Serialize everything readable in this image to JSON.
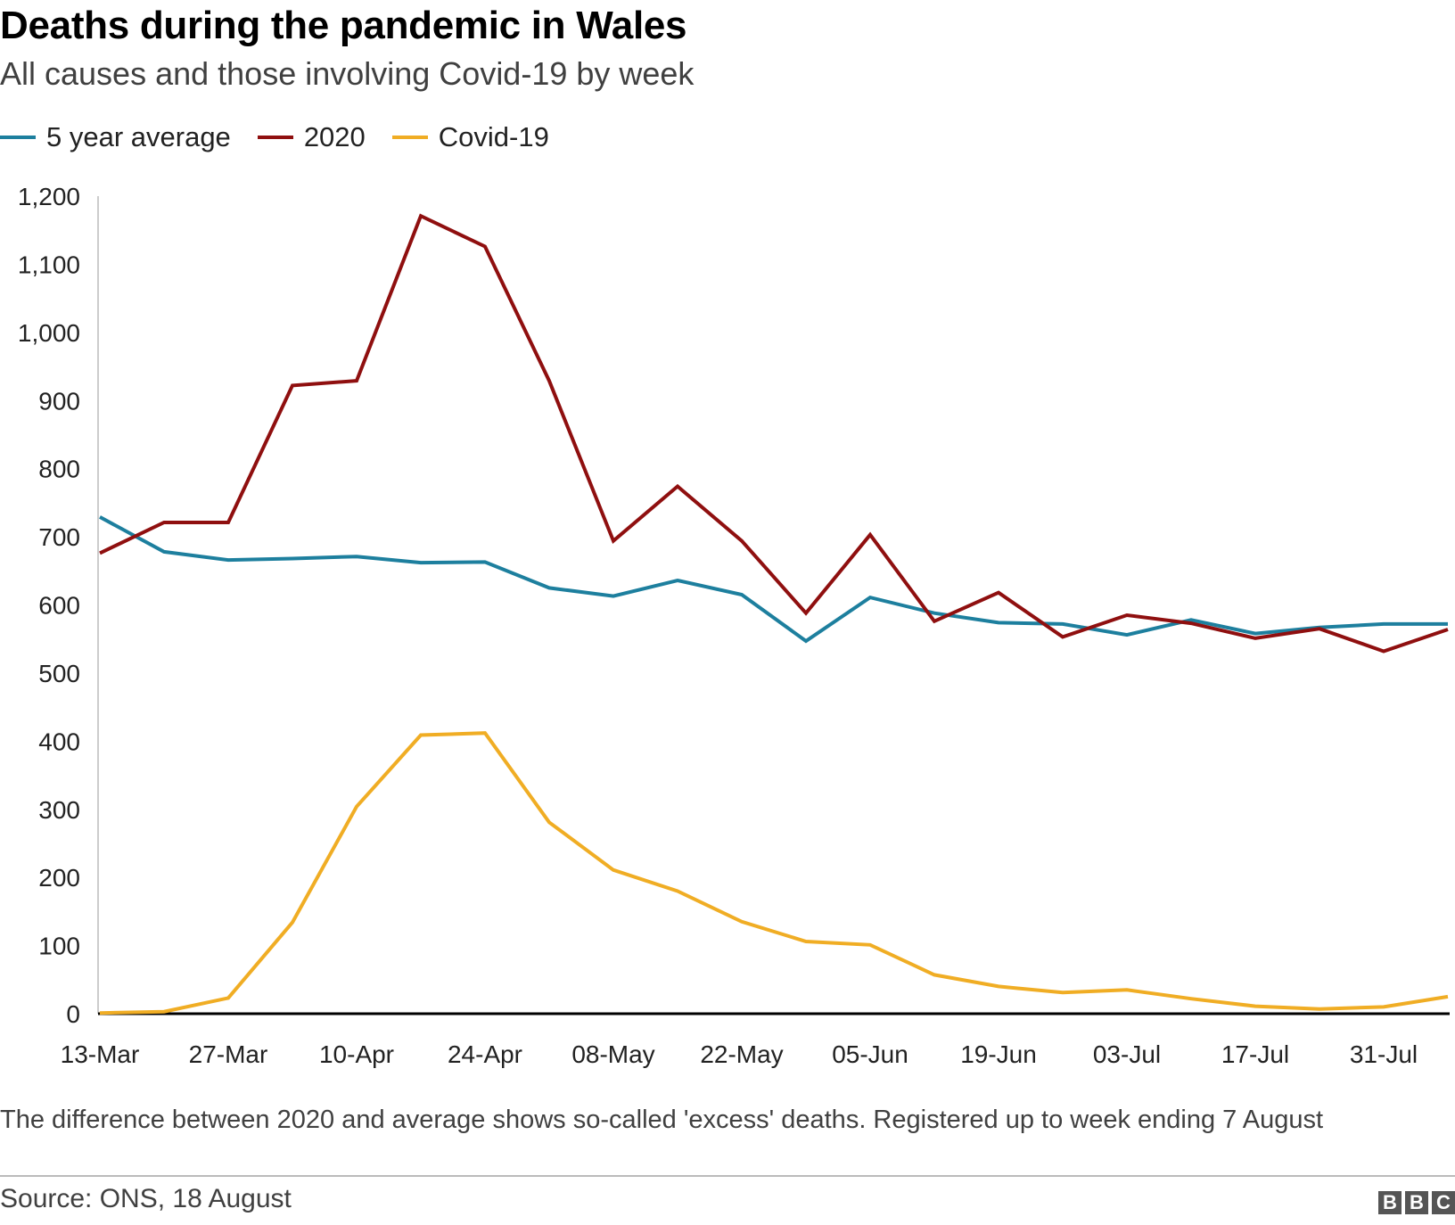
{
  "header": {
    "title": "Deaths during the pandemic in Wales",
    "subtitle": "All causes and those involving Covid-19 by week"
  },
  "footer": {
    "note": "The difference between 2020 and average shows so-called 'excess' deaths. Registered up to week ending 7 August",
    "source": "Source: ONS, 18 August",
    "logo_letters": [
      "B",
      "B",
      "C"
    ]
  },
  "colors": {
    "five_year_average": "#1d7f9e",
    "year_2020": "#8f0f0f",
    "covid19": "#f0ad24",
    "axis": "#000000"
  },
  "chart_data": {
    "type": "line",
    "x": [
      "13-Mar",
      "20-Mar",
      "27-Mar",
      "03-Apr",
      "10-Apr",
      "17-Apr",
      "24-Apr",
      "01-May",
      "08-May",
      "15-May",
      "22-May",
      "29-May",
      "05-Jun",
      "12-Jun",
      "19-Jun",
      "26-Jun",
      "03-Jul",
      "10-Jul",
      "17-Jul",
      "24-Jul",
      "31-Jul",
      "07-Aug"
    ],
    "x_tick_labels": [
      "13-Mar",
      "27-Mar",
      "10-Apr",
      "24-Apr",
      "08-May",
      "22-May",
      "05-Jun",
      "19-Jun",
      "03-Jul",
      "17-Jul",
      "31-Jul"
    ],
    "y_ticks": [
      0,
      100,
      200,
      300,
      400,
      500,
      600,
      700,
      800,
      900,
      1000,
      1100,
      1200
    ],
    "y_tick_labels": [
      "0",
      "100",
      "200",
      "300",
      "400",
      "500",
      "600",
      "700",
      "800",
      "900",
      "1,000",
      "1,100",
      "1,200"
    ],
    "ylim": [
      0,
      1200
    ],
    "legend_position": "top-left",
    "grid": false,
    "series": [
      {
        "name": "5 year average",
        "color_key": "five_year_average",
        "values": [
          729,
          678,
          666,
          668,
          671,
          662,
          663,
          625,
          613,
          636,
          615,
          547,
          611,
          588,
          574,
          572,
          556,
          578,
          558,
          567,
          572,
          572
        ]
      },
      {
        "name": "2020",
        "color_key": "year_2020",
        "values": [
          676,
          721,
          721,
          922,
          929,
          1171,
          1126,
          929,
          694,
          774,
          694,
          588,
          703,
          576,
          618,
          553,
          585,
          573,
          551,
          565,
          532,
          564
        ]
      },
      {
        "name": "Covid-19",
        "color_key": "covid19",
        "values": [
          1,
          3,
          23,
          134,
          304,
          409,
          412,
          281,
          211,
          180,
          135,
          106,
          101,
          57,
          40,
          31,
          35,
          22,
          11,
          7,
          10,
          25
        ]
      }
    ]
  }
}
